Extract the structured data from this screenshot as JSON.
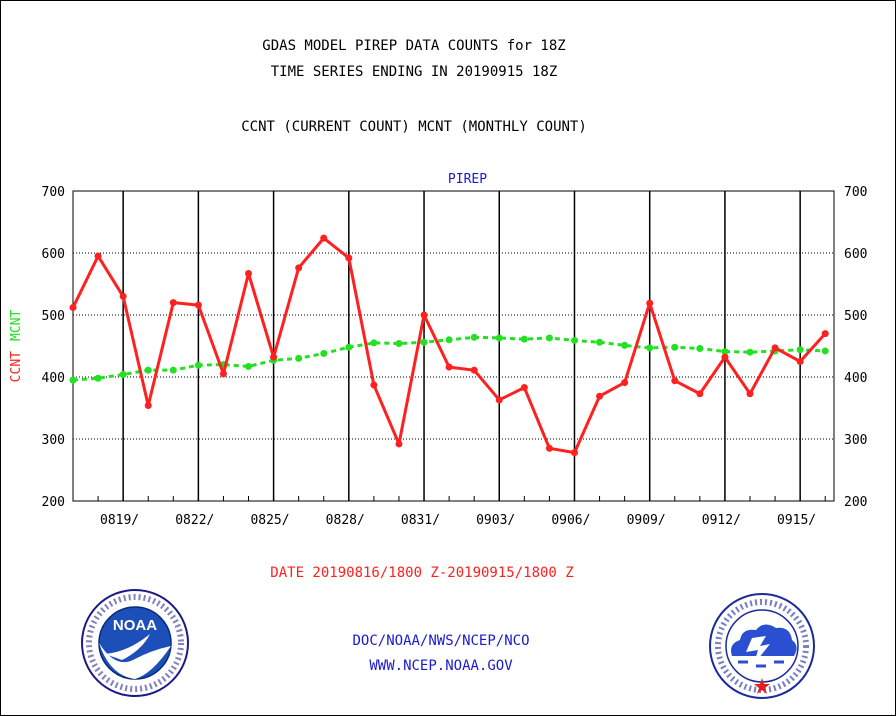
{
  "header": {
    "title_line1": "GDAS MODEL PIREP DATA COUNTS for 18Z",
    "title_line2": "TIME SERIES ENDING IN 20190915 18Z",
    "subtitle": "CCNT (CURRENT COUNT) MCNT (MONTHLY COUNT)"
  },
  "footer": {
    "date_range": "DATE 20190816/1800 Z-20190915/1800 Z",
    "org": "DOC/NOAA/NWS/NCEP/NCO",
    "url": "WWW.NCEP.NOAA.GOV"
  },
  "logos": {
    "left": {
      "icon": "noaa-logo-icon",
      "label": "NOAA"
    },
    "right": {
      "icon": "nws-logo-icon"
    }
  },
  "colors": {
    "ccnt": "#ff2020",
    "mcnt": "#22e022",
    "date_text": "#ff2020",
    "footer_text": "#1a1ad0",
    "panel_title": "#1a1ad0"
  },
  "chart_data": {
    "type": "line",
    "title": "PIREP",
    "ylabel_left": [
      "CCNT",
      "MCNT"
    ],
    "ylim": [
      200,
      700
    ],
    "yticks": [
      200,
      300,
      400,
      500,
      600,
      700
    ],
    "xlim": [
      0,
      30.35
    ],
    "x_tick_labels": [
      {
        "x": 2,
        "label": "0819/"
      },
      {
        "x": 5,
        "label": "0822/"
      },
      {
        "x": 8,
        "label": "0825/"
      },
      {
        "x": 11,
        "label": "0828/"
      },
      {
        "x": 14,
        "label": "0831/"
      },
      {
        "x": 17,
        "label": "0903/"
      },
      {
        "x": 20,
        "label": "0906/"
      },
      {
        "x": 23,
        "label": "0909/"
      },
      {
        "x": 26,
        "label": "0912/"
      },
      {
        "x": 29,
        "label": "0915/"
      }
    ],
    "grid": true,
    "series": [
      {
        "name": "CCNT",
        "values": [
          512,
          595,
          530,
          354,
          520,
          516,
          405,
          567,
          432,
          576,
          624,
          592,
          387,
          292,
          500,
          416,
          411,
          363,
          383,
          285,
          278,
          369,
          391,
          519,
          394,
          373,
          432,
          373,
          447,
          425,
          470
        ]
      },
      {
        "name": "MCNT",
        "values": [
          395,
          398,
          404,
          411,
          411,
          419,
          420,
          417,
          427,
          430,
          438,
          448,
          455,
          454,
          456,
          460,
          464,
          463,
          461,
          463,
          459,
          456,
          451,
          447,
          448,
          446,
          441,
          440,
          442,
          444,
          442
        ]
      }
    ]
  }
}
